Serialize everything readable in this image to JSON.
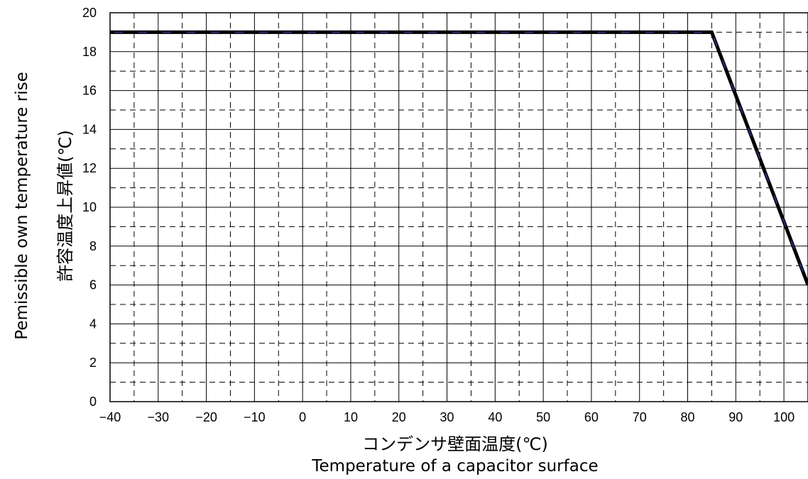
{
  "chart_data": {
    "type": "line",
    "title": "",
    "xlabel_jp": "コンデンサ壁面温度(℃)",
    "xlabel_en": "Temperature of a capacitor surface",
    "ylabel_jp": "許容温度上昇値(℃)",
    "ylabel_en": "Pemissible own temperature rise",
    "xlim": [
      -40,
      105
    ],
    "ylim": [
      0,
      20
    ],
    "x_ticks": [
      -40,
      -30,
      -20,
      -10,
      0,
      10,
      20,
      30,
      40,
      50,
      60,
      70,
      80,
      90,
      100
    ],
    "x_tick_labels": [
      "−40",
      "−30",
      "−20",
      "−10",
      "0",
      "10",
      "20",
      "30",
      "40",
      "50",
      "60",
      "70",
      "80",
      "90",
      "100"
    ],
    "y_ticks": [
      0,
      2,
      4,
      6,
      8,
      10,
      12,
      14,
      16,
      18,
      20
    ],
    "y_tick_labels": [
      "0",
      "2",
      "4",
      "6",
      "8",
      "10",
      "12",
      "14",
      "16",
      "18",
      "20"
    ],
    "major_grid_x": [
      -40,
      -30,
      -20,
      -10,
      0,
      10,
      20,
      30,
      40,
      50,
      60,
      70,
      80,
      90,
      100
    ],
    "minor_grid_x": [
      -35,
      -25,
      -15,
      -5,
      5,
      15,
      25,
      35,
      45,
      55,
      65,
      75,
      85,
      95
    ],
    "major_grid_y": [
      2,
      4,
      6,
      8,
      10,
      12,
      14,
      16,
      18
    ],
    "minor_grid_y": [
      1,
      3,
      5,
      7,
      9,
      11,
      13,
      15,
      17,
      19
    ],
    "grid": true,
    "legend": "none",
    "series": [
      {
        "color": "#000000",
        "dash_color": "#2b2f7a",
        "x": [
          -40,
          85,
          105
        ],
        "y": [
          19,
          19,
          6
        ]
      }
    ]
  }
}
